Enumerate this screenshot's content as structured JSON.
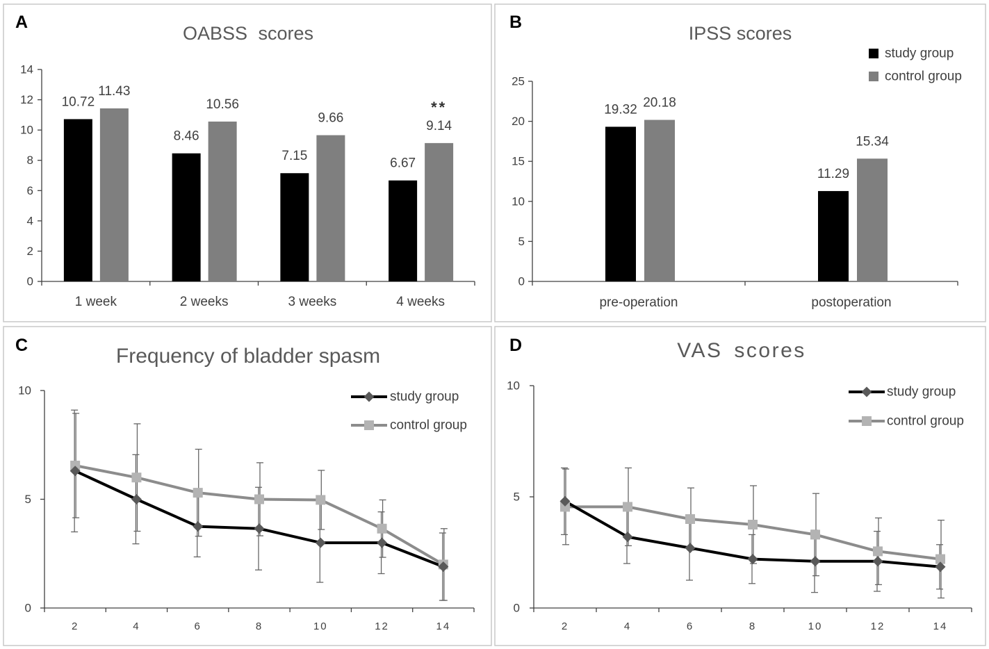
{
  "chart_data": [
    {
      "panel": "A",
      "type": "bar",
      "title": "OABSS scores",
      "categories": [
        "1 week",
        "2 weeks",
        "3 weeks",
        "4 weeks"
      ],
      "ylim": [
        0,
        14
      ],
      "yticks": [
        0,
        2,
        4,
        6,
        8,
        10,
        12,
        14
      ],
      "data_labels": true,
      "series": [
        {
          "color": "#000000",
          "values": [
            10.72,
            8.46,
            7.15,
            6.67
          ]
        },
        {
          "color": "#7f7f7f",
          "values": [
            11.43,
            10.56,
            9.66,
            9.14
          ]
        }
      ],
      "annotations": [
        {
          "text": "**",
          "series": 1,
          "category": 3
        }
      ]
    },
    {
      "panel": "B",
      "type": "bar",
      "title": "IPSS scores",
      "categories": [
        "pre-operation",
        "postoperation"
      ],
      "ylim": [
        0,
        25
      ],
      "yticks": [
        0,
        5,
        10,
        15,
        20,
        25
      ],
      "data_labels": true,
      "legend": "top-right",
      "series": [
        {
          "name": "study group",
          "color": "#000000",
          "values": [
            19.32,
            11.29
          ]
        },
        {
          "name": "control group",
          "color": "#7f7f7f",
          "values": [
            20.18,
            15.34
          ]
        }
      ]
    },
    {
      "panel": "C",
      "type": "line",
      "title": "Frequency of bladder spasm",
      "x": [
        2,
        4,
        6,
        8,
        10,
        12,
        14
      ],
      "ylim": [
        0,
        10
      ],
      "yticks": [
        0,
        5,
        10
      ],
      "legend": "top-right",
      "series": [
        {
          "name": "study group",
          "color": "#000000",
          "marker": "diamond",
          "marker_color": "#595959",
          "values": [
            6.3,
            5.0,
            3.75,
            3.65,
            3.0,
            3.0,
            1.9
          ],
          "errors": [
            2.8,
            2.05,
            1.4,
            1.9,
            1.82,
            1.42,
            1.55
          ]
        },
        {
          "name": "control group",
          "color": "#8c8c8c",
          "marker": "square",
          "marker_color": "#b3b3b3",
          "values": [
            6.55,
            6.0,
            5.3,
            5.0,
            4.97,
            3.65,
            2.0
          ],
          "errors": [
            2.4,
            2.47,
            2.0,
            1.68,
            1.36,
            1.32,
            1.65
          ]
        }
      ]
    },
    {
      "panel": "D",
      "type": "line",
      "title": "VAS scores",
      "x": [
        2,
        4,
        6,
        8,
        10,
        12,
        14
      ],
      "ylim": [
        0,
        10
      ],
      "yticks": [
        0,
        5,
        10
      ],
      "legend": "top-right",
      "series": [
        {
          "name": "study group",
          "color": "#000000",
          "marker": "diamond",
          "marker_color": "#595959",
          "values": [
            4.8,
            3.2,
            2.7,
            2.2,
            2.1,
            2.1,
            1.85
          ],
          "errors": [
            1.5,
            1.2,
            1.45,
            1.1,
            1.4,
            1.35,
            1.0
          ]
        },
        {
          "name": "control group",
          "color": "#8c8c8c",
          "marker": "square",
          "marker_color": "#b3b3b3",
          "values": [
            4.55,
            4.55,
            4.0,
            3.75,
            3.3,
            2.55,
            2.2
          ],
          "errors": [
            1.7,
            1.75,
            1.4,
            1.75,
            1.85,
            1.5,
            1.75
          ]
        }
      ]
    }
  ]
}
